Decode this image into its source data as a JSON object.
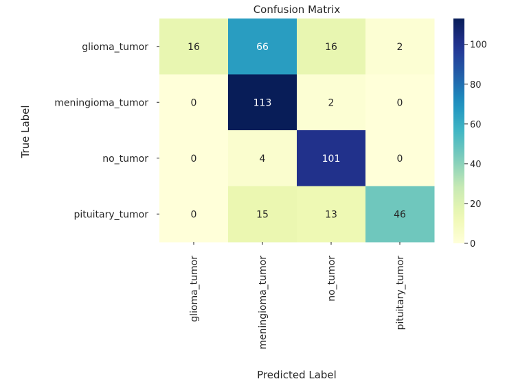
{
  "chart_data": {
    "type": "heatmap",
    "title": "Confusion Matrix",
    "xlabel": "Predicted Label",
    "ylabel": "True Label",
    "x_categories": [
      "glioma_tumor",
      "meningioma_tumor",
      "no_tumor",
      "pituitary_tumor"
    ],
    "y_categories": [
      "glioma_tumor",
      "meningioma_tumor",
      "no_tumor",
      "pituitary_tumor"
    ],
    "values": [
      [
        16,
        66,
        16,
        2
      ],
      [
        0,
        113,
        2,
        0
      ],
      [
        0,
        4,
        101,
        0
      ],
      [
        0,
        15,
        13,
        46
      ]
    ],
    "colormap": "YlGnBu",
    "color_range": [
      0,
      113
    ],
    "colorbar_ticks": [
      0,
      20,
      40,
      60,
      80,
      100
    ],
    "annotate": true
  }
}
